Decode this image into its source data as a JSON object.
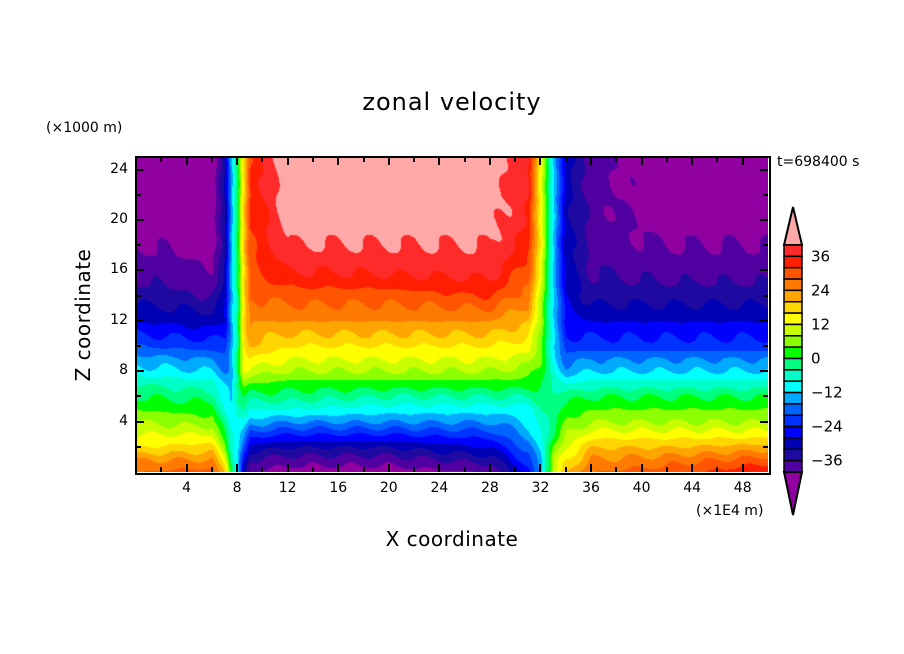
{
  "chart_data": {
    "type": "heatmap",
    "subtype": "filled-contour",
    "title": "zonal velocity",
    "xlabel": "X coordinate",
    "ylabel": "Z coordinate",
    "x_unit": "(×1E4 m)",
    "z_unit": "(×1000 m)",
    "time_label": "t=698400 s",
    "xlim": [
      0,
      50
    ],
    "zlim": [
      0,
      25
    ],
    "x_ticks": [
      "4",
      "8",
      "12",
      "16",
      "20",
      "24",
      "28",
      "32",
      "36",
      "40",
      "44",
      "48"
    ],
    "z_ticks": [
      "4",
      "8",
      "12",
      "16",
      "20",
      "24"
    ],
    "levels": {
      "min": -40,
      "max": 40,
      "step": 4
    },
    "colorbar_labels": [
      "36",
      "24",
      "12",
      "0",
      "−12",
      "−24",
      "−36"
    ],
    "colors": {
      "above_max": "#ffa8a8",
      "below_min": "#9000a0",
      "bands_top_to_bottom": [
        "#ff2a2a",
        "#ff1e00",
        "#ff5500",
        "#ff7a00",
        "#ffa500",
        "#ffd700",
        "#ffff00",
        "#c8ff00",
        "#8cff00",
        "#00ff00",
        "#00ff80",
        "#00ffc8",
        "#00ffff",
        "#00aaff",
        "#0064ff",
        "#0032ff",
        "#0000ff",
        "#0000b4",
        "#1e0aa0",
        "#5000a0"
      ]
    },
    "z": [
      0,
      1,
      2,
      3,
      4,
      5,
      6,
      7,
      8,
      9,
      10,
      12,
      14,
      16,
      18,
      20,
      22,
      25
    ],
    "columns": [
      {
        "x": 0,
        "values": [
          28,
          24,
          16,
          12,
          8,
          4,
          0,
          -4,
          -10,
          -14,
          -20,
          -28,
          -34,
          -38,
          -40,
          -42,
          -43,
          -44
        ]
      },
      {
        "x": 6,
        "values": [
          30,
          24,
          18,
          12,
          6,
          2,
          -2,
          -6,
          -12,
          -16,
          -22,
          -30,
          -36,
          -39,
          -42,
          -43,
          -44,
          -44
        ]
      },
      {
        "x": 7,
        "values": [
          20,
          12,
          6,
          0,
          -4,
          -8,
          -10,
          -12,
          -16,
          -18,
          -22,
          -28,
          -30,
          -32,
          -32,
          -32,
          -32,
          -32
        ]
      },
      {
        "x": 7.5,
        "values": [
          0,
          -2,
          -6,
          -8,
          -10,
          -12,
          -14,
          -14,
          -14,
          -14,
          -14,
          -14,
          -14,
          -14,
          -14,
          -14,
          -14,
          -14
        ]
      },
      {
        "x": 8,
        "values": [
          -10,
          -10,
          -10,
          -10,
          -8,
          -6,
          -4,
          -2,
          -2,
          -2,
          -2,
          -2,
          -2,
          -2,
          0,
          0,
          0,
          0
        ]
      },
      {
        "x": 8.5,
        "values": [
          -30,
          -26,
          -20,
          -14,
          -8,
          -4,
          0,
          6,
          12,
          14,
          16,
          18,
          18,
          18,
          18,
          18,
          18,
          18
        ]
      },
      {
        "x": 9,
        "values": [
          -40,
          -36,
          -30,
          -22,
          -14,
          -8,
          -2,
          4,
          10,
          16,
          20,
          24,
          28,
          30,
          32,
          32,
          32,
          32
        ]
      },
      {
        "x": 12,
        "values": [
          -42,
          -38,
          -32,
          -24,
          -16,
          -8,
          -2,
          2,
          8,
          12,
          16,
          24,
          30,
          36,
          40,
          42,
          44,
          44
        ]
      },
      {
        "x": 20,
        "values": [
          -42,
          -38,
          -32,
          -24,
          -16,
          -10,
          -4,
          2,
          8,
          12,
          16,
          24,
          30,
          37,
          40,
          42,
          44,
          44
        ]
      },
      {
        "x": 28,
        "values": [
          -40,
          -34,
          -28,
          -22,
          -16,
          -10,
          -4,
          2,
          8,
          12,
          16,
          24,
          32,
          38,
          40,
          42,
          42,
          44
        ]
      },
      {
        "x": 31,
        "values": [
          -26,
          -22,
          -18,
          -14,
          -12,
          -10,
          -4,
          2,
          6,
          10,
          14,
          20,
          26,
          30,
          34,
          36,
          36,
          36
        ]
      },
      {
        "x": 32,
        "values": [
          -14,
          -12,
          -10,
          -8,
          -6,
          -4,
          -2,
          0,
          2,
          4,
          6,
          8,
          10,
          12,
          14,
          14,
          14,
          14
        ]
      },
      {
        "x": 33,
        "values": [
          10,
          8,
          4,
          0,
          -2,
          -2,
          -2,
          -4,
          -8,
          -10,
          -12,
          -12,
          -12,
          -12,
          -12,
          -12,
          -12,
          -12
        ]
      },
      {
        "x": 34,
        "values": [
          20,
          16,
          12,
          8,
          4,
          2,
          -2,
          -8,
          -14,
          -18,
          -22,
          -26,
          -28,
          -30,
          -30,
          -30,
          -30,
          -30
        ]
      },
      {
        "x": 36,
        "values": [
          28,
          24,
          20,
          14,
          8,
          4,
          0,
          -6,
          -12,
          -16,
          -22,
          -28,
          -34,
          -36,
          -38,
          -38,
          -38,
          -38
        ]
      },
      {
        "x": 42,
        "values": [
          30,
          26,
          20,
          14,
          8,
          4,
          0,
          -6,
          -12,
          -16,
          -22,
          -28,
          -34,
          -38,
          -40,
          -42,
          -44,
          -44
        ]
      },
      {
        "x": 50,
        "values": [
          36,
          30,
          22,
          14,
          8,
          4,
          0,
          -6,
          -12,
          -16,
          -22,
          -28,
          -34,
          -38,
          -40,
          -42,
          -44,
          -44
        ]
      }
    ]
  }
}
